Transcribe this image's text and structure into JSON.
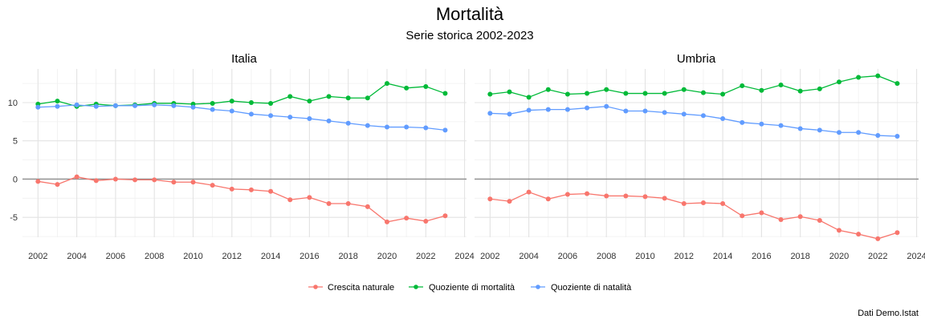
{
  "chart_data": {
    "type": "line",
    "title": "Mortalità",
    "subtitle": "Serie storica 2002-2023",
    "caption": "Dati Demo.Istat",
    "x_ticks": [
      2002,
      2004,
      2006,
      2008,
      2010,
      2012,
      2014,
      2016,
      2018,
      2020,
      2022,
      2024
    ],
    "y_ticks": [
      -5,
      0,
      5,
      10
    ],
    "xlim": [
      2001.2,
      2024.1
    ],
    "ylim": [
      -7.6,
      14.4
    ],
    "legend_position": "bottom",
    "legend_items": [
      "Crescita naturale",
      "Quoziente di mortalità",
      "Quoziente di natalità"
    ],
    "colors": {
      "Crescita naturale": "#F8766D",
      "Quoziente di mortalità": "#00BA38",
      "Quoziente di natalità": "#619CFF"
    },
    "x": [
      2002,
      2003,
      2004,
      2005,
      2006,
      2007,
      2008,
      2009,
      2010,
      2011,
      2012,
      2013,
      2014,
      2015,
      2016,
      2017,
      2018,
      2019,
      2020,
      2021,
      2022,
      2023
    ],
    "panels": [
      {
        "name": "Italia",
        "series": [
          {
            "name": "Crescita naturale",
            "values": [
              -0.3,
              -0.7,
              0.3,
              -0.2,
              0.0,
              -0.1,
              -0.1,
              -0.4,
              -0.4,
              -0.8,
              -1.3,
              -1.4,
              -1.6,
              -2.7,
              -2.4,
              -3.2,
              -3.2,
              -3.6,
              -5.6,
              -5.1,
              -5.5,
              -4.8
            ]
          },
          {
            "name": "Quoziente di mortalità",
            "values": [
              9.8,
              10.2,
              9.5,
              9.8,
              9.6,
              9.7,
              9.9,
              9.9,
              9.8,
              9.9,
              10.2,
              10.0,
              9.9,
              10.8,
              10.2,
              10.8,
              10.6,
              10.6,
              12.5,
              11.9,
              12.1,
              11.2
            ]
          },
          {
            "name": "Quoziente di natalità",
            "values": [
              9.4,
              9.5,
              9.7,
              9.5,
              9.6,
              9.6,
              9.7,
              9.6,
              9.4,
              9.1,
              8.9,
              8.5,
              8.3,
              8.1,
              7.9,
              7.6,
              7.3,
              7.0,
              6.8,
              6.8,
              6.7,
              6.4
            ]
          }
        ]
      },
      {
        "name": "Umbria",
        "series": [
          {
            "name": "Crescita naturale",
            "values": [
              -2.6,
              -2.9,
              -1.7,
              -2.6,
              -2.0,
              -1.9,
              -2.2,
              -2.2,
              -2.3,
              -2.5,
              -3.2,
              -3.1,
              -3.2,
              -4.8,
              -4.4,
              -5.3,
              -4.9,
              -5.4,
              -6.7,
              -7.2,
              -7.8,
              -7.0
            ]
          },
          {
            "name": "Quoziente di mortalità",
            "values": [
              11.1,
              11.4,
              10.7,
              11.7,
              11.1,
              11.2,
              11.7,
              11.2,
              11.2,
              11.2,
              11.7,
              11.3,
              11.1,
              12.2,
              11.6,
              12.3,
              11.5,
              11.8,
              12.7,
              13.3,
              13.5,
              12.5
            ]
          },
          {
            "name": "Quoziente di natalità",
            "values": [
              8.6,
              8.5,
              9.0,
              9.1,
              9.1,
              9.3,
              9.5,
              8.9,
              8.9,
              8.7,
              8.5,
              8.3,
              7.9,
              7.4,
              7.2,
              7.0,
              6.6,
              6.4,
              6.1,
              6.1,
              5.7,
              5.6
            ]
          }
        ]
      }
    ]
  }
}
